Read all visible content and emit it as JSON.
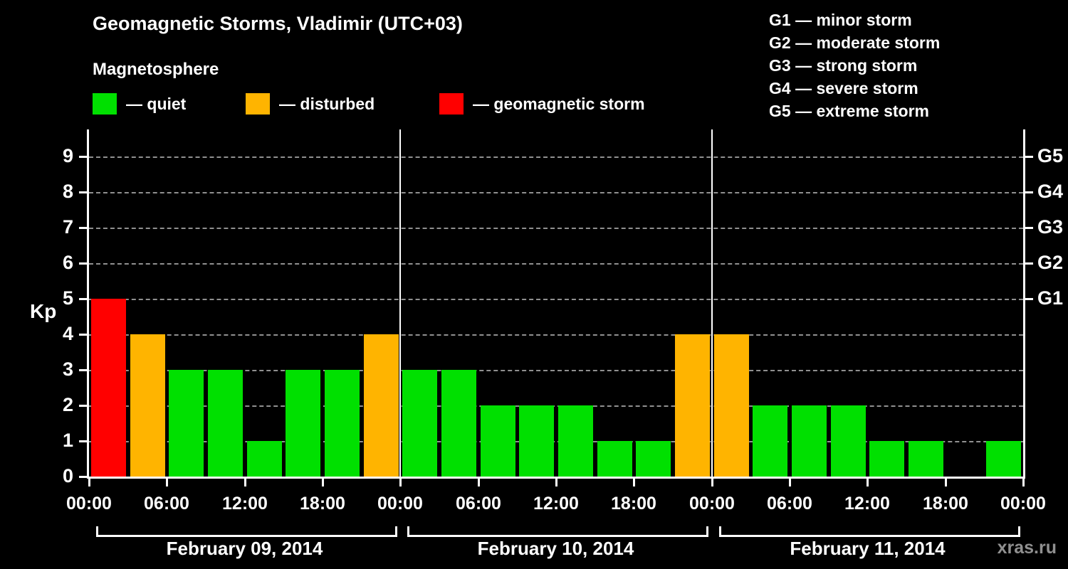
{
  "header": {
    "title": "Geomagnetic Storms, Vladimir (UTC+03)",
    "subtitle": "Magnetosphere"
  },
  "legend": {
    "items": [
      {
        "name": "quiet",
        "color": "#00e000",
        "label": "— quiet"
      },
      {
        "name": "disturbed",
        "color": "#ffb400",
        "label": "— disturbed"
      },
      {
        "name": "storm",
        "color": "#ff0000",
        "label": "— geomagnetic storm"
      }
    ]
  },
  "g_scale_legend": [
    "G1 — minor storm",
    "G2 — moderate storm",
    "G3 — strong storm",
    "G4 — severe storm",
    "G5 — extreme storm"
  ],
  "watermark": "xras.ru",
  "chart_data": {
    "type": "bar",
    "title": "Geomagnetic Storms, Vladimir (UTC+03)",
    "subtitle": "Magnetosphere",
    "ylabel": "Kp",
    "ylim": [
      0,
      9.5
    ],
    "yticks": [
      0,
      1,
      2,
      3,
      4,
      5,
      6,
      7,
      8,
      9
    ],
    "grid": "dashed horizontal at each Kp integer",
    "legend_position": "top",
    "bar_interval_hours": 3,
    "x_tick_labels_per_day": [
      "00:00",
      "06:00",
      "12:00",
      "18:00"
    ],
    "x_axis_end_label": "00:00",
    "right_axis_labels": [
      {
        "kp": 5,
        "label": "G1"
      },
      {
        "kp": 6,
        "label": "G2"
      },
      {
        "kp": 7,
        "label": "G3"
      },
      {
        "kp": 8,
        "label": "G4"
      },
      {
        "kp": 9,
        "label": "G5"
      }
    ],
    "color_thresholds": {
      "quiet_max": 3,
      "disturbed": 4,
      "storm_min": 5
    },
    "colors": {
      "quiet": "#00e000",
      "disturbed": "#ffb400",
      "storm": "#ff0000"
    },
    "days": [
      {
        "date": "February 09, 2014",
        "values": [
          5,
          4,
          3,
          3,
          1,
          3,
          3,
          4
        ]
      },
      {
        "date": "February 10, 2014",
        "values": [
          3,
          3,
          2,
          2,
          2,
          1,
          1,
          4
        ]
      },
      {
        "date": "February 11, 2014",
        "values": [
          4,
          2,
          2,
          2,
          1,
          1,
          0,
          1
        ]
      }
    ]
  }
}
